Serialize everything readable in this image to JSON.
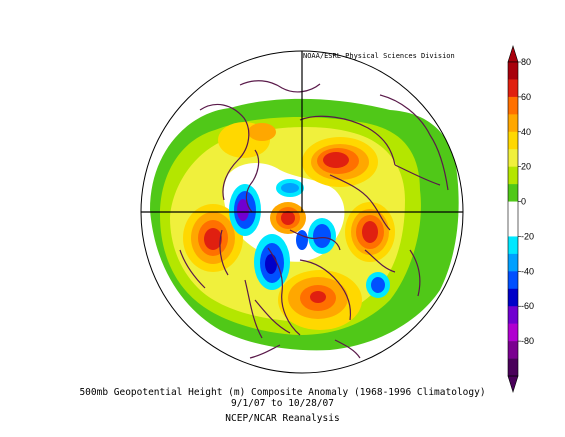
{
  "credit": "NOAA/ESRL Physical Sciences Division",
  "caption": {
    "line1": "500mb Geopotential Height (m) Composite Anomaly (1968-1996 Climatology)",
    "line2": "9/1/07 to 10/28/07",
    "line3": "NCEP/NCAR Reanalysis"
  },
  "colorbar": {
    "ticks": [
      "80",
      "60",
      "40",
      "20",
      "0",
      "-20",
      "-40",
      "-60",
      "-80"
    ],
    "colors": [
      "#a8000c",
      "#e02010",
      "#ff7000",
      "#ffa700",
      "#ffd800",
      "#f0f03c",
      "#b4e600",
      "#50c818",
      "#ffffff",
      "#ffffff",
      "#00e8ff",
      "#00a0ff",
      "#0050ff",
      "#0000c8",
      "#7000d0",
      "#b000d0",
      "#7a0090",
      "#4a005a"
    ]
  },
  "colors": {
    "coastline": "#5a1a4a",
    "outline": "#000000"
  }
}
